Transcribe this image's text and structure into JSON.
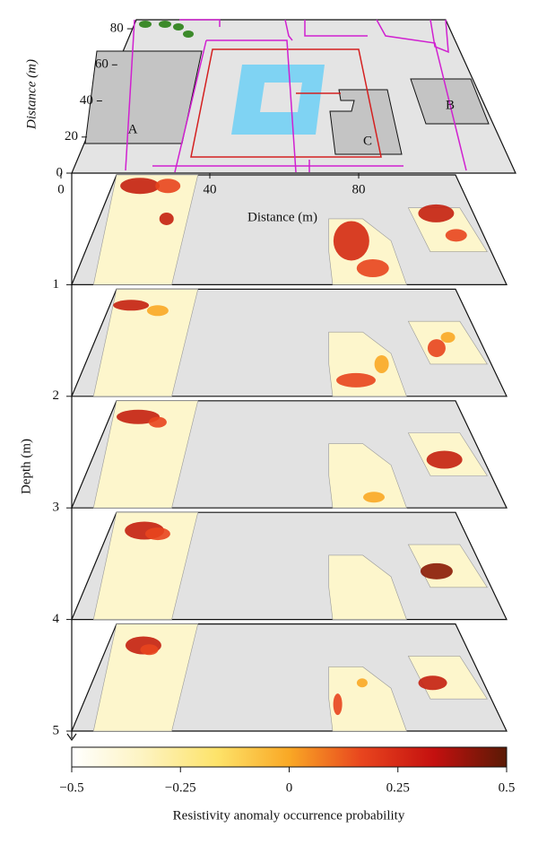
{
  "chart_data": {
    "type": "depth-slices",
    "map": {
      "xlabel": "Distance (m)",
      "ylabel": "Distance (m)",
      "xlim": [
        0,
        120
      ],
      "xticks": [
        0,
        40,
        80
      ],
      "ylim": [
        0,
        85
      ],
      "yticks": [
        0,
        20,
        40,
        60,
        80
      ],
      "zones": [
        {
          "label": "A"
        },
        {
          "label": "B"
        },
        {
          "label": "C"
        }
      ]
    },
    "depth": {
      "label": "Depth (m)",
      "lim": [
        0,
        5
      ],
      "ticks": [
        1,
        2,
        3,
        4,
        5
      ]
    },
    "colorbar": {
      "label": "Resistivity anomaly occurrence probability",
      "lim": [
        -0.5,
        0.5
      ],
      "ticks": [
        {
          "value": -0.5,
          "label": "−0.5"
        },
        {
          "value": -0.25,
          "label": "−0.25"
        },
        0,
        0.25,
        0.5
      ],
      "colors": [
        "#ffffff",
        "#fdf3c0",
        "#fde36a",
        "#f9a825",
        "#e8451e",
        "#c4100f",
        "#5a1a05"
      ]
    }
  }
}
